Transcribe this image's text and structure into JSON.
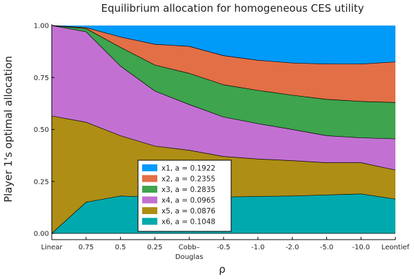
{
  "chart_data": {
    "type": "area",
    "stacked": true,
    "title": "Equilibrium allocation for homogeneous CES utility",
    "xlabel": "ρ",
    "ylabel": "Player 1's optimal allocation",
    "ylim": [
      0,
      1
    ],
    "yticks": [
      "0.00",
      "0.25",
      "0.50",
      "0.75",
      "1.00"
    ],
    "ytick_values": [
      0,
      0.25,
      0.5,
      0.75,
      1.0
    ],
    "categories": [
      "Linear",
      "0.75",
      "0.5",
      "0.25",
      "Cobb–Douglas",
      "-0.5",
      "-1.0",
      "-2.0",
      "-5.0",
      "-10.0",
      "Leontief"
    ],
    "grid": true,
    "legend_position": "bottom-center",
    "series": [
      {
        "name": "x6, a = 0.1048",
        "color": "#00a9ad",
        "values": [
          0.0,
          0.15,
          0.18,
          0.175,
          0.17,
          0.175,
          0.178,
          0.18,
          0.185,
          0.19,
          0.165
        ]
      },
      {
        "name": "x5, a = 0.0876",
        "color": "#ae8e15",
        "values": [
          0.565,
          0.385,
          0.29,
          0.245,
          0.23,
          0.195,
          0.18,
          0.17,
          0.155,
          0.15,
          0.14
        ]
      },
      {
        "name": "x4, a = 0.0965",
        "color": "#c271d2",
        "values": [
          0.435,
          0.435,
          0.335,
          0.265,
          0.22,
          0.19,
          0.17,
          0.15,
          0.13,
          0.12,
          0.15
        ]
      },
      {
        "name": "x3, a = 0.2835",
        "color": "#3ea44e",
        "values": [
          0.0,
          0.015,
          0.09,
          0.125,
          0.15,
          0.155,
          0.16,
          0.165,
          0.175,
          0.175,
          0.175
        ]
      },
      {
        "name": "x2, a = 0.2355",
        "color": "#e26f46",
        "values": [
          0.0,
          0.005,
          0.05,
          0.1,
          0.13,
          0.14,
          0.145,
          0.155,
          0.17,
          0.18,
          0.195
        ]
      },
      {
        "name": "x1, a = 0.1922",
        "color": "#009af9",
        "values": [
          0.0,
          0.01,
          0.055,
          0.09,
          0.1,
          0.145,
          0.167,
          0.18,
          0.185,
          0.185,
          0.175
        ]
      }
    ]
  }
}
